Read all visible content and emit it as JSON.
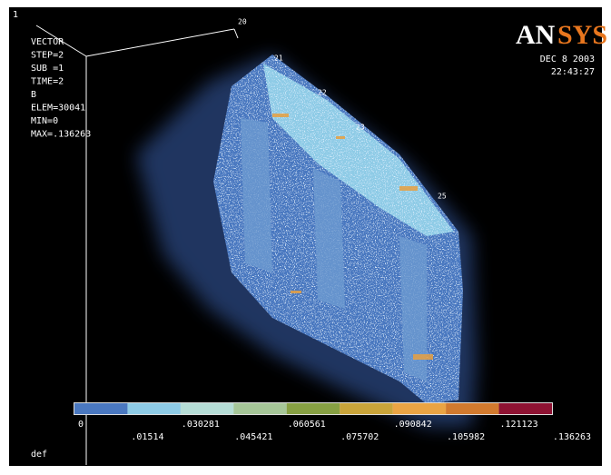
{
  "header": {
    "window_number": "1",
    "info_lines": [
      "VECTOR",
      "STEP=2",
      "SUB =1",
      "TIME=2",
      "B",
      "ELEM=30041",
      "MIN=0",
      "MAX=.136263"
    ],
    "logo_left": "AN",
    "logo_right": "SYS",
    "date": "DEC  8 2003",
    "time": "22:43:27"
  },
  "node_labels": [
    "20",
    "21",
    "22",
    "23",
    "25"
  ],
  "legend": {
    "colors": [
      "#4a78c0",
      "#8ecbe6",
      "#b6ddd6",
      "#a6c698",
      "#87a043",
      "#c9a43a",
      "#eaa444",
      "#d27a2e",
      "#8e1232"
    ],
    "labels": [
      "0",
      ".01514",
      ".030281",
      ".045421",
      ".060561",
      ".075702",
      ".090842",
      ".105982",
      ".121123",
      ".136263"
    ]
  },
  "footer": "def"
}
